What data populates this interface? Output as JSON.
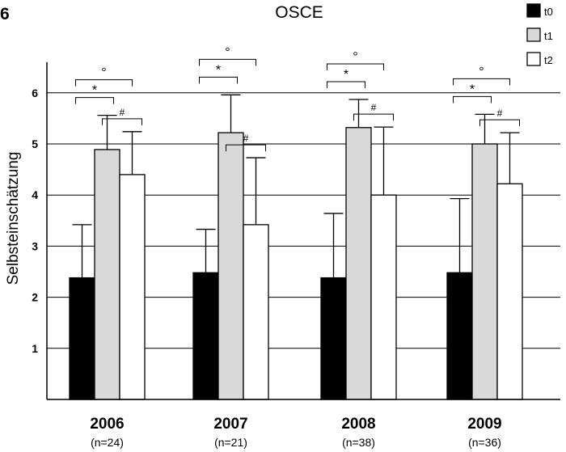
{
  "chart_data": {
    "type": "bar",
    "panel_label": "6",
    "title": "OSCE",
    "ylabel": "Selbsteinschätzung",
    "xlabel": "",
    "ylim": [
      0,
      6.6
    ],
    "yticks": [
      1,
      2,
      3,
      4,
      5,
      6
    ],
    "grid": true,
    "legend_position": "top-right",
    "categories": [
      "2006",
      "2007",
      "2008",
      "2009"
    ],
    "category_n": [
      "(n=24)",
      "(n=21)",
      "(n=38)",
      "(n=36)"
    ],
    "series": [
      {
        "name": "t0",
        "color": "#000000",
        "values": [
          2.38,
          2.48,
          2.38,
          2.48
        ],
        "error_upper": [
          3.42,
          3.33,
          3.64,
          3.93
        ]
      },
      {
        "name": "t1",
        "color": "#d9d9d9",
        "values": [
          4.89,
          5.22,
          5.32,
          5.0
        ],
        "error_upper": [
          5.56,
          5.96,
          5.87,
          5.58
        ]
      },
      {
        "name": "t2",
        "color": "#ffffff",
        "values": [
          4.4,
          3.42,
          4.0,
          4.22
        ],
        "error_upper": [
          5.24,
          4.73,
          5.33,
          5.22
        ]
      }
    ],
    "significance": [
      {
        "from": "t0",
        "to": "t1",
        "symbol": "*"
      },
      {
        "from": "t1",
        "to": "t2",
        "symbol": "#"
      },
      {
        "from": "t0",
        "to": "t2",
        "symbol": "°"
      }
    ]
  }
}
